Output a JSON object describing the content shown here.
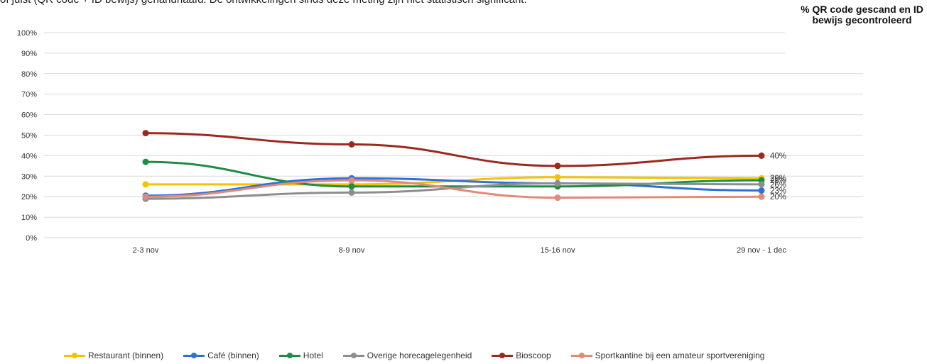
{
  "header": {
    "caption": "of juist (QR code + ID bewijs) gehandhaafd. De ontwikkelingen sinds deze meting zijn niet statistisch significant.",
    "side_title": "% QR code gescand en ID bewijs gecontroleerd"
  },
  "chart_data": {
    "type": "line",
    "categories": [
      "2-3 nov",
      "8-9 nov",
      "15-16 nov",
      "29 nov - 1 dec"
    ],
    "yticks": [
      "0%",
      "10%",
      "20%",
      "30%",
      "40%",
      "50%",
      "60%",
      "70%",
      "80%",
      "90%",
      "100%"
    ],
    "ylim": [
      0,
      100
    ],
    "grid": true,
    "legend_position": "bottom",
    "series": [
      {
        "name": "Restaurant (binnen)",
        "color": "#f2c400",
        "values": [
          26,
          26,
          29.5,
          29
        ],
        "end_label": "29%"
      },
      {
        "name": "Café (binnen)",
        "color": "#2f6fd6",
        "values": [
          20.5,
          29,
          26.5,
          23
        ],
        "end_label": "23%"
      },
      {
        "name": "Hotel",
        "color": "#1e8c46",
        "values": [
          37,
          25,
          25,
          28
        ],
        "end_label": "28%"
      },
      {
        "name": "Overige horecagelegenheid",
        "color": "#8e8e8e",
        "values": [
          19,
          22,
          26.5,
          26
        ],
        "end_label": "26%"
      },
      {
        "name": "Bioscoop",
        "color": "#9b2a1e",
        "values": [
          51,
          45.5,
          35,
          40
        ],
        "end_label": "40%"
      },
      {
        "name": "Sportkantine bij een amateur sportvereniging",
        "color": "#e08a7a",
        "values": [
          20,
          28,
          19.5,
          20
        ],
        "end_label": "20%"
      }
    ]
  }
}
